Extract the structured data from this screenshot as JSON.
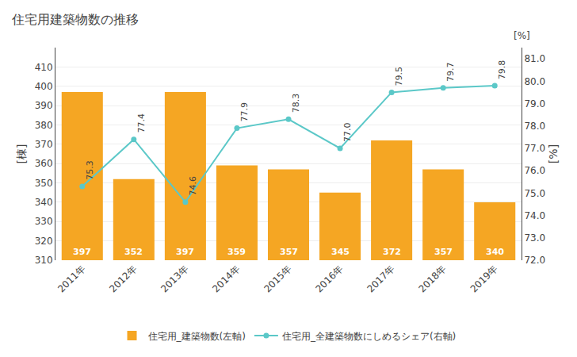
{
  "chart_data": {
    "type": "bar",
    "title": "住宅用建築物数の推移",
    "categories": [
      "2011年",
      "2012年",
      "2013年",
      "2014年",
      "2015年",
      "2016年",
      "2017年",
      "2018年",
      "2019年"
    ],
    "series": [
      {
        "name": "住宅用_建築物数(左軸)",
        "type": "bar",
        "color": "#f5a623",
        "values": [
          397,
          352,
          397,
          359,
          357,
          345,
          372,
          357,
          340
        ]
      },
      {
        "name": "住宅用_全建築物数にしめるシェア(右軸)",
        "type": "line",
        "axis": "y2",
        "color": "#5bc8c8",
        "marker": "circle",
        "values": [
          75.3,
          77.4,
          74.6,
          77.9,
          78.3,
          77.0,
          79.5,
          79.7,
          79.8
        ],
        "value_labels": [
          "75.3",
          "77.4",
          "74.6",
          "77.9",
          "78.3",
          "77.0",
          "79.5",
          "79.7",
          "79.8"
        ]
      }
    ],
    "y_label": "[棟]",
    "y2_label": "[%]",
    "annotations": [
      "[%]"
    ],
    "ylim": [
      310,
      420
    ],
    "yticks": [
      310,
      320,
      330,
      340,
      350,
      360,
      370,
      380,
      390,
      400,
      410
    ],
    "y2lim": [
      72.0,
      81.5
    ],
    "y2ticks": [
      {
        "value": 72.0,
        "label": "72.0"
      },
      {
        "value": 73.0,
        "label": "73.0"
      },
      {
        "value": 74.0,
        "label": "74.0"
      },
      {
        "value": 75.0,
        "label": "75.0"
      },
      {
        "value": 76.0,
        "label": "76.0"
      },
      {
        "value": 77.0,
        "label": "77.0"
      },
      {
        "value": 78.0,
        "label": "78.0"
      },
      {
        "value": 79.0,
        "label": "79.0"
      },
      {
        "value": 80.0,
        "label": "80.0"
      },
      {
        "value": 81.0,
        "label": "81.0"
      }
    ],
    "grid": true,
    "legend": "bottom",
    "data_labels": true
  }
}
